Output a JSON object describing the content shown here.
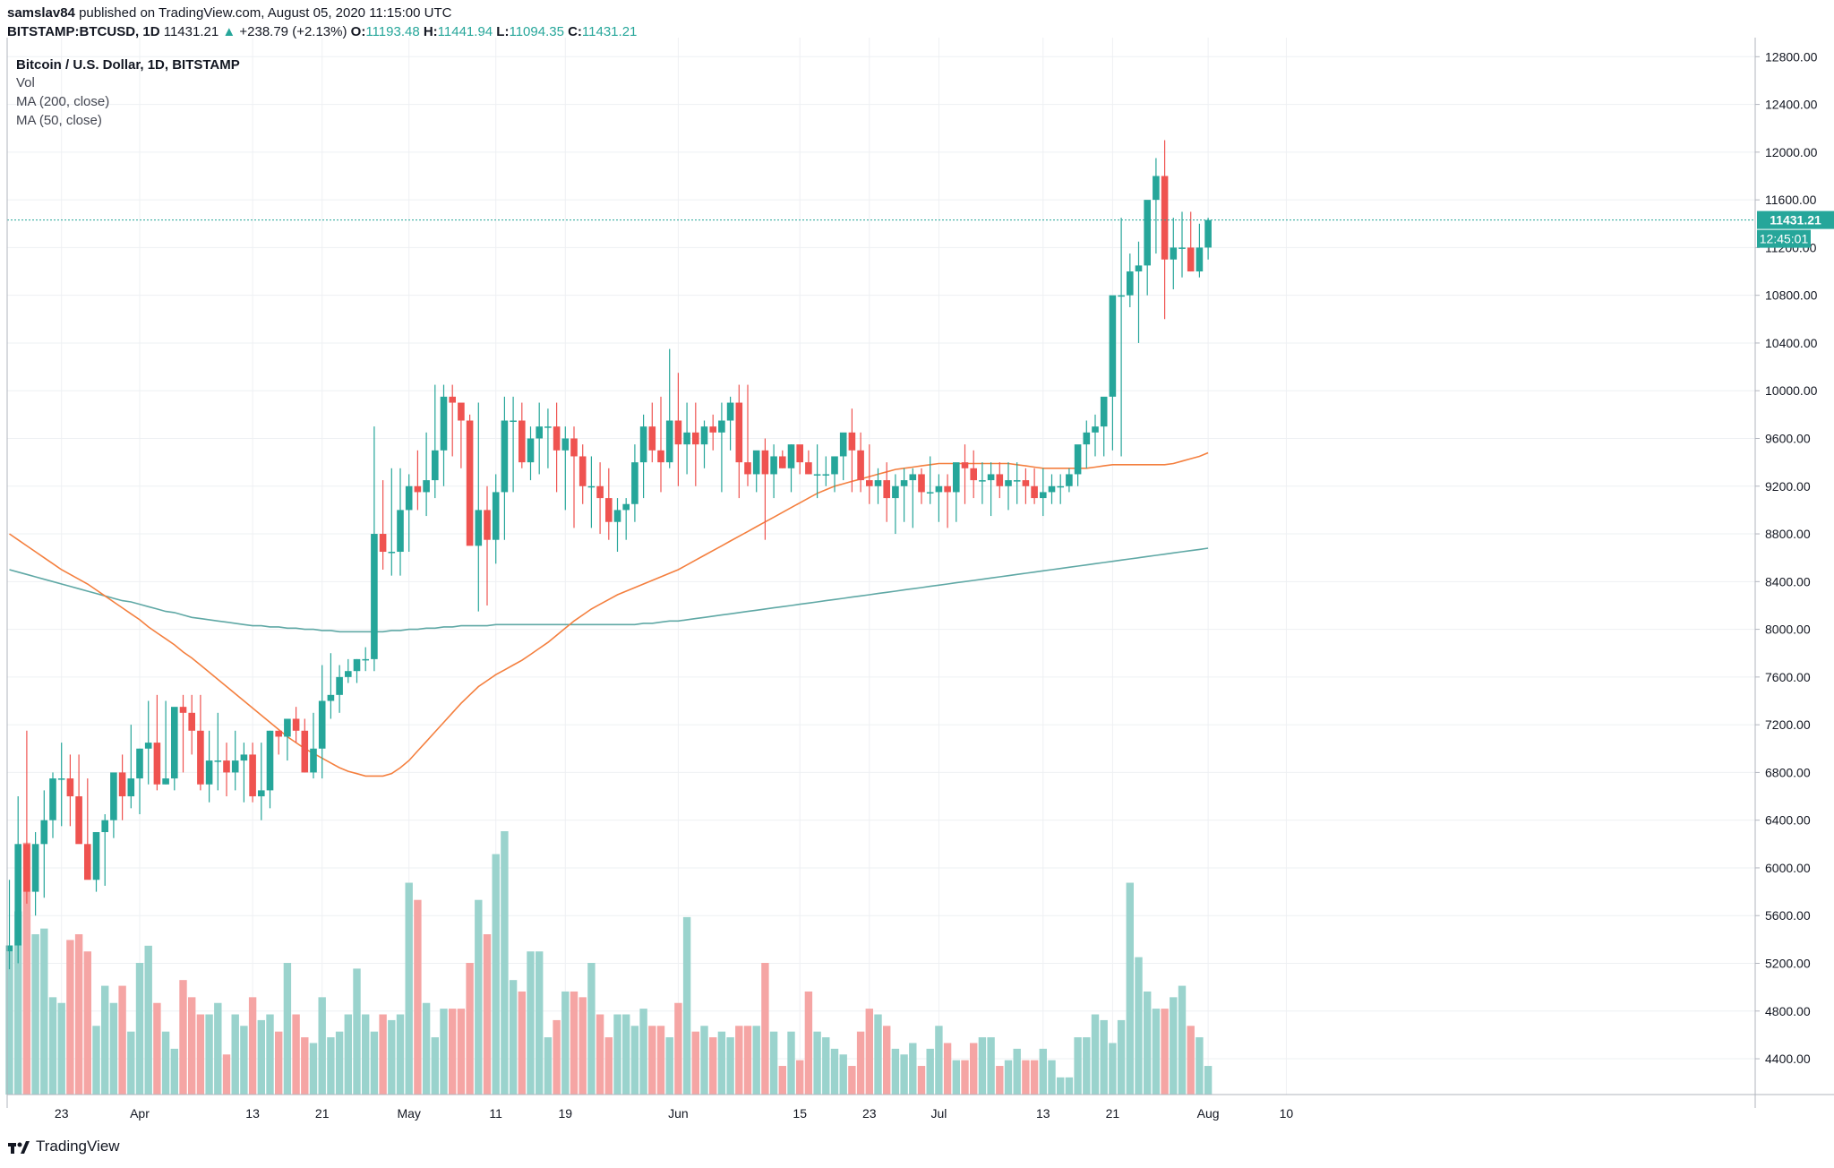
{
  "header": {
    "publisher": "samslav84",
    "published_text": "published on TradingView.com, August 05, 2020 11:15:00 UTC",
    "symbol": "BITSTAMP:BTCUSD, 1D",
    "last": "11431.21",
    "change": "+238.79 (+2.13%)",
    "o_label": "O:",
    "o": "11193.48",
    "h_label": "H:",
    "h": "11441.94",
    "l_label": "L:",
    "l": "11094.35",
    "c_label": "C:",
    "c": "11431.21"
  },
  "legend": {
    "title": "Bitcoin / U.S. Dollar, 1D, BITSTAMP",
    "vol": "Vol",
    "ma200": "MA (200, close)",
    "ma50": "MA (50, close)"
  },
  "footer": {
    "brand": "TradingView"
  },
  "colors": {
    "up": "#26a69a",
    "down": "#ef5350",
    "vol_up": "#9ad3cd",
    "vol_down": "#f5a5a4",
    "ma50": "#f47f3e",
    "ma200": "#5fa8a5",
    "last_line": "#26a69a",
    "grid": "#eef0f3"
  },
  "chart_data": {
    "type": "candlestick",
    "title": "Bitcoin / U.S. Dollar, 1D, BITSTAMP",
    "xlabel": "",
    "ylabel": "",
    "ylim": [
      4100,
      12960
    ],
    "y_ticks": [
      "12800.00",
      "12400.00",
      "12000.00",
      "11600.00",
      "11200.00",
      "10800.00",
      "10400.00",
      "10000.00",
      "9600.00",
      "9200.00",
      "8800.00",
      "8400.00",
      "8000.00",
      "7600.00",
      "7200.00",
      "6800.00",
      "6400.00",
      "6000.00",
      "5600.00",
      "5200.00",
      "4800.00",
      "4400.00"
    ],
    "y_tick_values": [
      12800,
      12400,
      12000,
      11600,
      11200,
      10800,
      10400,
      10000,
      9600,
      9200,
      8800,
      8400,
      8000,
      7600,
      7200,
      6800,
      6400,
      6000,
      5600,
      5200,
      4800,
      4400
    ],
    "x_ticks": [
      {
        "label": "23",
        "index": 6
      },
      {
        "label": "Apr",
        "index": 15
      },
      {
        "label": "13",
        "index": 28
      },
      {
        "label": "21",
        "index": 36
      },
      {
        "label": "May",
        "index": 46
      },
      {
        "label": "11",
        "index": 56
      },
      {
        "label": "19",
        "index": 64
      },
      {
        "label": "Jun",
        "index": 77
      },
      {
        "label": "15",
        "index": 91
      },
      {
        "label": "23",
        "index": 99
      },
      {
        "label": "Jul",
        "index": 107
      },
      {
        "label": "13",
        "index": 119
      },
      {
        "label": "21",
        "index": 127
      },
      {
        "label": "Aug",
        "index": 138
      },
      {
        "label": "10",
        "index": 147
      }
    ],
    "last_price_label": "11431.21",
    "countdown_label": "12:45:01",
    "last_price": 11431.21,
    "volume_scale_max": 6400,
    "candles": {
      "o": [
        5300,
        5350,
        6200,
        5800,
        6200,
        6400,
        6750,
        6750,
        6600,
        6200,
        5900,
        6300,
        6400,
        6800,
        6600,
        6750,
        7000,
        7050,
        6700,
        6750,
        7350,
        7300,
        7150,
        6700,
        6900,
        6900,
        6800,
        6900,
        6950,
        6600,
        6650,
        7150,
        7100,
        7250,
        7150,
        6800,
        7000,
        7400,
        7450,
        7600,
        7650,
        7750,
        7750,
        8800,
        8650,
        8650,
        9000,
        9200,
        9150,
        9250,
        9500,
        9950,
        9900,
        9750,
        8700,
        9000,
        8750,
        9150,
        9750,
        9750,
        9400,
        9600,
        9700,
        9700,
        9500,
        9600,
        9450,
        9200,
        9200,
        9100,
        8900,
        9000,
        9050,
        9400,
        9700,
        9500,
        9400,
        9750,
        9550,
        9650,
        9550,
        9700,
        9650,
        9750,
        9900,
        9400,
        9300,
        9500,
        9300,
        9450,
        9350,
        9550,
        9400,
        9300,
        9300,
        9300,
        9450,
        9650,
        9500,
        9250,
        9200,
        9250,
        9100,
        9200,
        9250,
        9300,
        9150,
        9150,
        9200,
        9150,
        9400,
        9350,
        9250,
        9250,
        9300,
        9200,
        9250,
        9250,
        9200,
        9100,
        9150,
        9200,
        9200,
        9300,
        9550,
        9650,
        9700,
        9950,
        10800,
        10800,
        11000,
        11050,
        11600,
        11800,
        11100,
        11200,
        11200,
        11000,
        11200
      ],
      "h": [
        5900,
        6600,
        7150,
        6300,
        6650,
        6800,
        7050,
        6950,
        6950,
        6750,
        6250,
        6450,
        6700,
        6950,
        7200,
        7000,
        7400,
        7450,
        7400,
        7250,
        7450,
        7450,
        7450,
        7150,
        7300,
        7050,
        7150,
        7050,
        7050,
        7050,
        7150,
        7150,
        7150,
        7350,
        7250,
        7300,
        7700,
        7800,
        7700,
        7750,
        7750,
        7850,
        9700,
        9250,
        9350,
        9350,
        9300,
        9500,
        9650,
        10050,
        10050,
        10050,
        9750,
        9800,
        9900,
        9200,
        9300,
        9950,
        9950,
        9900,
        9700,
        9900,
        9850,
        9900,
        9700,
        9700,
        9550,
        9450,
        9400,
        9350,
        9100,
        9100,
        9550,
        9800,
        9900,
        9950,
        10350,
        10150,
        9900,
        9900,
        9750,
        9800,
        9900,
        9950,
        10050,
        10050,
        9450,
        9600,
        9550,
        9500,
        9550,
        9500,
        9500,
        9550,
        9450,
        9400,
        9550,
        9850,
        9650,
        9550,
        9350,
        9400,
        9300,
        9350,
        9350,
        9350,
        9450,
        9300,
        9300,
        9250,
        9550,
        9500,
        9400,
        9400,
        9400,
        9400,
        9400,
        9350,
        9350,
        9350,
        9300,
        9300,
        9350,
        9500,
        9750,
        9800,
        9800,
        10050,
        11450,
        11150,
        11250,
        11450,
        11950,
        12100,
        11450,
        11500,
        11500,
        11400,
        11450
      ],
      "l": [
        5150,
        5200,
        5700,
        5600,
        5750,
        6250,
        6350,
        6350,
        6300,
        5950,
        5800,
        5850,
        6250,
        6400,
        6500,
        6450,
        6700,
        6650,
        6700,
        6650,
        6800,
        6950,
        6650,
        6550,
        6650,
        6600,
        6650,
        6550,
        6550,
        6400,
        6500,
        6950,
        6900,
        7050,
        6800,
        6750,
        6750,
        7250,
        7300,
        7550,
        7550,
        7650,
        7650,
        8500,
        8450,
        8450,
        8650,
        9000,
        8950,
        9100,
        9200,
        9450,
        9350,
        9250,
        8150,
        8200,
        8550,
        8750,
        9150,
        9350,
        9250,
        9300,
        9350,
        9150,
        9000,
        8850,
        9050,
        8850,
        8800,
        8750,
        8650,
        8750,
        8900,
        9100,
        9400,
        9150,
        9350,
        9200,
        9300,
        9200,
        9350,
        9500,
        9150,
        9500,
        9100,
        9200,
        9150,
        8750,
        9100,
        9350,
        9150,
        9300,
        9300,
        9100,
        9200,
        9150,
        9250,
        9150,
        9150,
        9050,
        9050,
        8900,
        8800,
        8900,
        8850,
        9050,
        9050,
        8900,
        8850,
        8900,
        9050,
        9100,
        9050,
        8950,
        9100,
        9000,
        9050,
        9050,
        9050,
        8950,
        9050,
        9050,
        9150,
        9200,
        9350,
        9450,
        9450,
        9500,
        9450,
        10700,
        10400,
        10800,
        11150,
        10600,
        10850,
        10950,
        11000,
        10950,
        11100
      ],
      "c": [
        5350,
        6200,
        5800,
        6200,
        6400,
        6750,
        6750,
        6600,
        6200,
        5900,
        6300,
        6400,
        6800,
        6600,
        6750,
        7000,
        7050,
        6700,
        6750,
        7350,
        7300,
        7150,
        6700,
        6900,
        6900,
        6800,
        6900,
        6950,
        6600,
        6650,
        7150,
        7100,
        7250,
        7150,
        6800,
        7000,
        7400,
        7450,
        7600,
        7650,
        7750,
        7750,
        8800,
        8650,
        8650,
        9000,
        9200,
        9150,
        9250,
        9500,
        9950,
        9900,
        9750,
        8700,
        9000,
        8750,
        9150,
        9750,
        9750,
        9400,
        9600,
        9700,
        9700,
        9500,
        9600,
        9450,
        9200,
        9200,
        9100,
        8900,
        9000,
        9050,
        9400,
        9700,
        9500,
        9400,
        9750,
        9550,
        9650,
        9550,
        9700,
        9650,
        9750,
        9900,
        9400,
        9300,
        9500,
        9300,
        9450,
        9350,
        9550,
        9400,
        9300,
        9300,
        9300,
        9450,
        9650,
        9500,
        9250,
        9200,
        9250,
        9100,
        9200,
        9250,
        9300,
        9150,
        9150,
        9200,
        9150,
        9400,
        9350,
        9250,
        9250,
        9300,
        9200,
        9250,
        9250,
        9200,
        9100,
        9150,
        9200,
        9200,
        9300,
        9550,
        9650,
        9700,
        9950,
        10800,
        10800,
        11000,
        11050,
        11600,
        11800,
        11100,
        11200,
        11200,
        11000,
        11200,
        11431
      ]
    },
    "volume": [
      5350,
      5700,
      6300,
      5500,
      5550,
      4950,
      4900,
      5450,
      5500,
      5350,
      4700,
      5050,
      4900,
      5050,
      4650,
      5250,
      5400,
      4900,
      4650,
      4500,
      5100,
      4950,
      4800,
      4800,
      4900,
      4450,
      4800,
      4700,
      4950,
      4750,
      4800,
      4650,
      5250,
      4800,
      4600,
      4550,
      4950,
      4600,
      4650,
      4800,
      5200,
      4800,
      4650,
      4800,
      4750,
      4800,
      5950,
      5800,
      4900,
      4600,
      4850,
      4850,
      4850,
      5250,
      5800,
      5500,
      6200,
      6400,
      5100,
      5000,
      5350,
      5350,
      4600,
      4750,
      5000,
      5000,
      4950,
      5250,
      4800,
      4600,
      4800,
      4800,
      4700,
      4850,
      4700,
      4700,
      4600,
      4900,
      5650,
      4650,
      4700,
      4600,
      4650,
      4600,
      4700,
      4700,
      4700,
      5250,
      4650,
      4350,
      4650,
      4400,
      5000,
      4650,
      4600,
      4500,
      4450,
      4350,
      4650,
      4850,
      4800,
      4700,
      4500,
      4450,
      4550,
      4350,
      4500,
      4700,
      4550,
      4400,
      4400,
      4550,
      4600,
      4600,
      4350,
      4400,
      4500,
      4400,
      4400,
      4500,
      4400,
      4250,
      4250,
      4600,
      4600,
      4800,
      4750,
      4550,
      4750,
      5950,
      5300,
      5000,
      4850,
      4850,
      4950,
      5050,
      4700,
      4600,
      4350
    ],
    "ma50": [
      8800,
      8750,
      8700,
      8650,
      8600,
      8550,
      8500,
      8460,
      8420,
      8380,
      8330,
      8280,
      8230,
      8180,
      8130,
      8080,
      8020,
      7970,
      7920,
      7870,
      7810,
      7760,
      7700,
      7640,
      7580,
      7520,
      7460,
      7400,
      7340,
      7280,
      7220,
      7160,
      7100,
      7050,
      7000,
      6960,
      6920,
      6880,
      6840,
      6810,
      6790,
      6770,
      6770,
      6770,
      6790,
      6840,
      6900,
      6980,
      7060,
      7140,
      7220,
      7300,
      7380,
      7450,
      7520,
      7570,
      7620,
      7660,
      7700,
      7740,
      7790,
      7840,
      7890,
      7950,
      8010,
      8070,
      8120,
      8170,
      8210,
      8250,
      8290,
      8320,
      8350,
      8380,
      8410,
      8440,
      8470,
      8500,
      8540,
      8580,
      8620,
      8660,
      8700,
      8740,
      8780,
      8820,
      8860,
      8900,
      8940,
      8980,
      9020,
      9060,
      9100,
      9140,
      9170,
      9200,
      9220,
      9240,
      9260,
      9280,
      9300,
      9320,
      9340,
      9350,
      9360,
      9370,
      9380,
      9390,
      9390,
      9390,
      9390,
      9390,
      9390,
      9390,
      9390,
      9390,
      9380,
      9370,
      9360,
      9350,
      9350,
      9350,
      9350,
      9350,
      9350,
      9360,
      9370,
      9380,
      9380,
      9380,
      9380,
      9380,
      9380,
      9380,
      9390,
      9410,
      9430,
      9450,
      9480
    ],
    "ma200": [
      8500,
      8480,
      8460,
      8440,
      8420,
      8400,
      8380,
      8360,
      8340,
      8320,
      8300,
      8280,
      8260,
      8240,
      8230,
      8210,
      8190,
      8170,
      8150,
      8140,
      8120,
      8100,
      8090,
      8080,
      8070,
      8060,
      8050,
      8040,
      8030,
      8030,
      8020,
      8020,
      8010,
      8010,
      8000,
      8000,
      7990,
      7990,
      7980,
      7980,
      7980,
      7980,
      7980,
      7980,
      7990,
      7990,
      8000,
      8000,
      8010,
      8010,
      8020,
      8020,
      8030,
      8030,
      8030,
      8030,
      8040,
      8040,
      8040,
      8040,
      8040,
      8040,
      8040,
      8040,
      8040,
      8040,
      8040,
      8040,
      8040,
      8040,
      8040,
      8040,
      8040,
      8050,
      8050,
      8060,
      8070,
      8070,
      8080,
      8090,
      8100,
      8110,
      8120,
      8130,
      8140,
      8150,
      8160,
      8170,
      8180,
      8190,
      8200,
      8210,
      8220,
      8230,
      8240,
      8250,
      8260,
      8270,
      8280,
      8290,
      8300,
      8310,
      8320,
      8330,
      8340,
      8350,
      8360,
      8370,
      8380,
      8390,
      8400,
      8410,
      8420,
      8430,
      8440,
      8450,
      8460,
      8470,
      8480,
      8490,
      8500,
      8510,
      8520,
      8530,
      8540,
      8550,
      8560,
      8570,
      8580,
      8590,
      8600,
      8610,
      8620,
      8630,
      8640,
      8650,
      8660,
      8670,
      8680
    ]
  }
}
